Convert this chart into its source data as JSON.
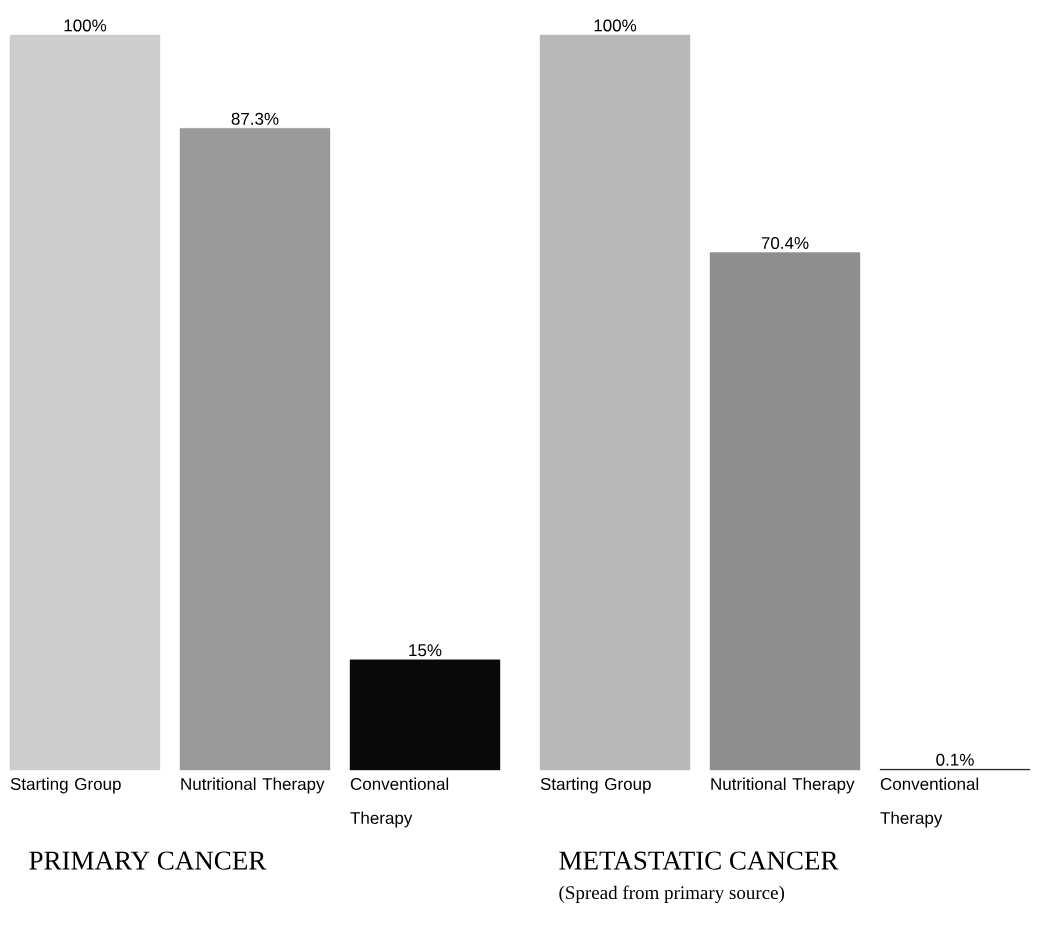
{
  "chart_data": [
    {
      "type": "bar",
      "title": "PRIMARY CANCER",
      "categories": [
        "Starting Group",
        "Nutritional Therapy",
        "Conventional Therapy"
      ],
      "values": [
        100,
        87.3,
        15
      ],
      "value_labels": [
        "100%",
        "87.3%",
        "15%"
      ],
      "colors": [
        "#cdcdcd",
        "#9a9a9a",
        "#0a0a0a"
      ]
    },
    {
      "type": "bar",
      "title": "METASTATIC CANCER",
      "subtitle": "(Spread from primary source)",
      "categories": [
        "Starting Group",
        "Nutritional Therapy",
        "Conventional Therapy"
      ],
      "values": [
        100,
        70.4,
        0.1
      ],
      "value_labels": [
        "100%",
        "70.4%",
        "0.1%"
      ],
      "colors": [
        "#b8b8b8",
        "#8e8e8e",
        "#0a0a0a"
      ]
    }
  ]
}
